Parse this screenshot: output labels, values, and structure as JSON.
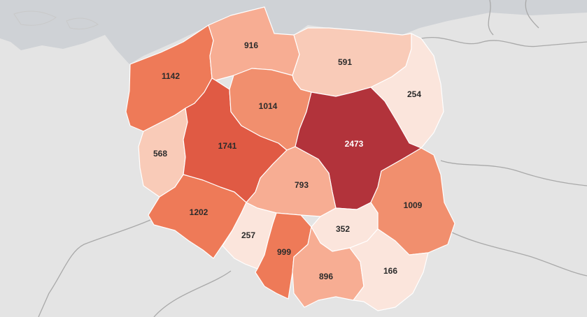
{
  "colors": {
    "land": "#e4e4e4",
    "sea": "#cfd2d6",
    "border": "#a9a9a9",
    "scale": [
      "#fbe5dc",
      "#f9cbb8",
      "#f7ad93",
      "#f18f6e",
      "#ee7a58",
      "#e36149",
      "#d04a40",
      "#b2333b"
    ]
  },
  "regions": [
    {
      "id": "zachodniopomorskie",
      "value": "1142",
      "color": "#ee7a58"
    },
    {
      "id": "pomorskie",
      "value": "916",
      "color": "#f7ad93"
    },
    {
      "id": "warminsko-mazurskie",
      "value": "591",
      "color": "#f9cbb8"
    },
    {
      "id": "podlaskie",
      "value": "254",
      "color": "#fbe5dc"
    },
    {
      "id": "lubuskie",
      "value": "568",
      "color": "#f9cbb8"
    },
    {
      "id": "wielkopolskie",
      "value": "1741",
      "color": "#e05a44"
    },
    {
      "id": "kujawsko-pomorskie",
      "value": "1014",
      "color": "#f18f6e"
    },
    {
      "id": "mazowieckie",
      "value": "2473",
      "color": "#b2333b"
    },
    {
      "id": "lodzkie",
      "value": "793",
      "color": "#f7ad93"
    },
    {
      "id": "lubelskie",
      "value": "1009",
      "color": "#f18f6e"
    },
    {
      "id": "dolnoslaskie",
      "value": "1202",
      "color": "#ee7a58"
    },
    {
      "id": "opolskie",
      "value": "257",
      "color": "#fbe5dc"
    },
    {
      "id": "slaskie",
      "value": "999",
      "color": "#ee7a58"
    },
    {
      "id": "swietokrzyskie",
      "value": "352",
      "color": "#fbe5dc"
    },
    {
      "id": "malopolskie",
      "value": "896",
      "color": "#f7ad93"
    },
    {
      "id": "podkarpackie",
      "value": "166",
      "color": "#fbe5dc"
    }
  ]
}
